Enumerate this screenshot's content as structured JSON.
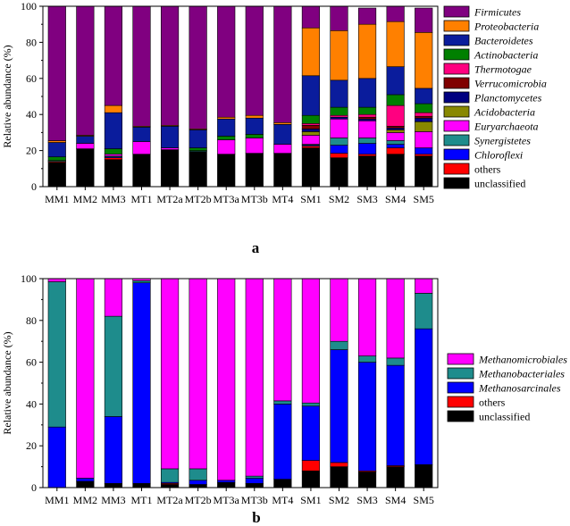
{
  "chart_data": [
    {
      "panel": "a",
      "type": "bar",
      "stacked": true,
      "ylabel": "Relative abundance (%)",
      "ylim": [
        0,
        100
      ],
      "yticks": [
        0,
        20,
        40,
        60,
        80,
        100
      ],
      "categories": [
        "MM1",
        "MM2",
        "MM3",
        "MT1",
        "MT2a",
        "MT2b",
        "MT3a",
        "MT3b",
        "MT4",
        "SM1",
        "SM2",
        "SM3",
        "SM4",
        "SM5"
      ],
      "series": [
        {
          "name": "unclassified",
          "color": "#000000",
          "italic": false,
          "values": [
            13.5,
            21,
            15,
            18,
            20.5,
            19.5,
            18,
            18.5,
            18.5,
            21.5,
            16,
            17,
            18,
            17
          ]
        },
        {
          "name": "others",
          "color": "#ff0000",
          "italic": false,
          "values": [
            0.5,
            0,
            1,
            0,
            0,
            0,
            0,
            0,
            0,
            1,
            2.5,
            1,
            3.5,
            1
          ]
        },
        {
          "name": "Chloroflexi",
          "color": "#0000ff",
          "italic": true,
          "values": [
            0,
            0,
            0.5,
            0,
            0,
            0,
            0,
            0,
            0,
            0.5,
            4.5,
            6,
            2,
            3.5
          ]
        },
        {
          "name": "Synergistetes",
          "color": "#1e8c8c",
          "italic": true,
          "values": [
            0.5,
            0,
            0.5,
            0,
            0,
            0.5,
            0,
            0,
            0,
            0.5,
            4,
            3,
            2,
            0
          ]
        },
        {
          "name": "Euryarchaeota",
          "color": "#ff00ff",
          "italic": true,
          "values": [
            0,
            3,
            1,
            7,
            1,
            0,
            8,
            8.5,
            5,
            5,
            10.5,
            9.5,
            4.5,
            9
          ]
        },
        {
          "name": "Acidobacteria",
          "color": "#888800",
          "italic": true,
          "values": [
            0,
            0,
            0,
            0,
            0,
            0,
            0,
            0,
            0,
            2,
            0,
            0,
            1.5,
            5.5
          ]
        },
        {
          "name": "Planctomycetes",
          "color": "#000080",
          "italic": true,
          "values": [
            0,
            0,
            0,
            0,
            0,
            0,
            0,
            0,
            0,
            1.5,
            1,
            1,
            1,
            2
          ]
        },
        {
          "name": "Verrucomicrobia",
          "color": "#800000",
          "italic": true,
          "values": [
            0,
            0,
            0,
            0,
            0,
            0,
            0,
            0,
            0,
            2,
            0,
            1,
            1,
            1
          ]
        },
        {
          "name": "Thermotogae",
          "color": "#ff0080",
          "italic": true,
          "values": [
            0,
            0,
            0,
            0,
            0,
            0,
            0,
            0,
            0,
            1,
            1,
            1.5,
            11.5,
            2
          ]
        },
        {
          "name": "Actinobacteria",
          "color": "#008000",
          "italic": true,
          "values": [
            2,
            0,
            3,
            0,
            0,
            1.5,
            2,
            2,
            0,
            4.5,
            4.5,
            4,
            6,
            5
          ]
        },
        {
          "name": "Bacteroidetes",
          "color": "#0a1c9c",
          "italic": true,
          "values": [
            8,
            4,
            20,
            8,
            12,
            10,
            9.5,
            9,
            11,
            22,
            15,
            16,
            15.5,
            8.5
          ]
        },
        {
          "name": "Proteobacteria",
          "color": "#ff8000",
          "italic": true,
          "values": [
            1,
            0.5,
            4,
            0.5,
            0.5,
            0.5,
            1,
            1.5,
            1,
            26.5,
            27.5,
            30,
            25,
            31
          ]
        },
        {
          "name": "Firmicutes",
          "color": "#800080",
          "italic": true,
          "values": [
            74.5,
            71.5,
            55,
            66.5,
            66,
            68,
            61.5,
            60.5,
            64.5,
            12,
            13.5,
            9,
            8.5,
            13.5
          ]
        }
      ],
      "legend_order": [
        "Firmicutes",
        "Proteobacteria",
        "Bacteroidetes",
        "Actinobacteria",
        "Thermotogae",
        "Verrucomicrobia",
        "Planctomycetes",
        "Acidobacteria",
        "Euryarchaeota",
        "Synergistetes",
        "Chloroflexi",
        "others",
        "unclassified"
      ],
      "legend_position": "right"
    },
    {
      "panel": "b",
      "type": "bar",
      "stacked": true,
      "ylabel": "Relative abundance (%)",
      "ylim": [
        0,
        100
      ],
      "yticks": [
        0,
        20,
        40,
        60,
        80,
        100
      ],
      "categories": [
        "MM1",
        "MM2",
        "MM3",
        "MT1",
        "MT2a",
        "MT2b",
        "MT3a",
        "MT3b",
        "MT4",
        "SM1",
        "SM2",
        "SM3",
        "SM4",
        "SM5"
      ],
      "series": [
        {
          "name": "unclassified",
          "color": "#000000",
          "italic": false,
          "values": [
            0,
            3,
            2,
            2,
            1.5,
            1.5,
            2.5,
            2,
            4,
            8,
            10,
            7.5,
            10,
            11
          ]
        },
        {
          "name": "others",
          "color": "#ff0000",
          "italic": false,
          "values": [
            0,
            0,
            0,
            0,
            0.5,
            0,
            0,
            0,
            0,
            5,
            2,
            0.5,
            0.5,
            0
          ]
        },
        {
          "name": "Methanosarcinales",
          "color": "#0000ff",
          "italic": true,
          "values": [
            29,
            1.5,
            32,
            96,
            0.5,
            2,
            1,
            2.5,
            36,
            26,
            54,
            52,
            48,
            65
          ]
        },
        {
          "name": "Methanobacteriales",
          "color": "#1e8c8c",
          "italic": true,
          "values": [
            69.5,
            0,
            48,
            1,
            6.5,
            5.5,
            0,
            1,
            1.5,
            1.5,
            4,
            3,
            3.5,
            17
          ]
        },
        {
          "name": "Methanomicrobiales",
          "color": "#ff00ff",
          "italic": true,
          "values": [
            1.5,
            95.5,
            18,
            1,
            91,
            91,
            96.5,
            94.5,
            58.5,
            59.5,
            30,
            37,
            38,
            7
          ]
        }
      ],
      "legend_order": [
        "Methanomicrobiales",
        "Methanobacteriales",
        "Methanosarcinales",
        "others",
        "unclassified"
      ],
      "legend_position": "right"
    }
  ],
  "panel_labels": {
    "a": "a",
    "b": "b"
  }
}
